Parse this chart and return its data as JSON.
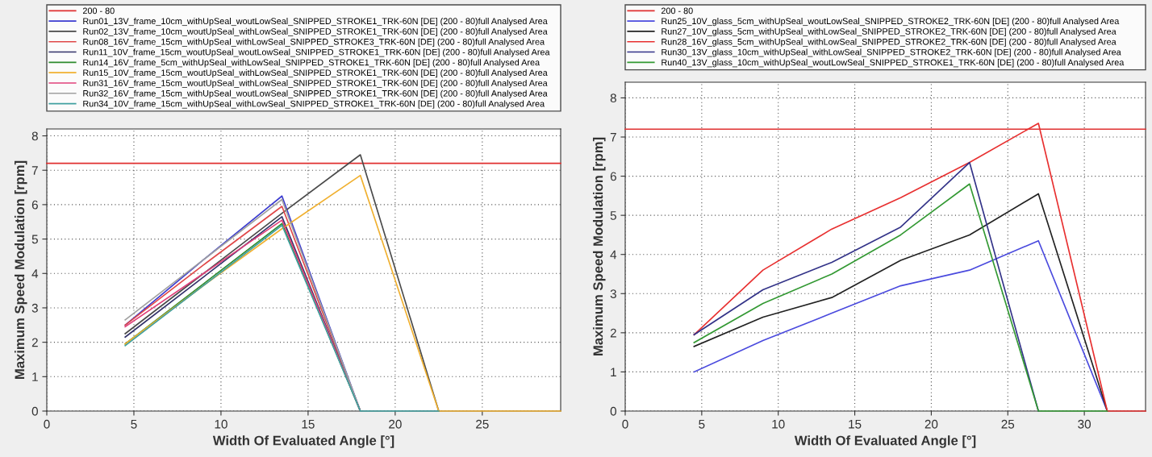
{
  "chart_data": [
    {
      "type": "line",
      "xlabel": "Width Of Evaluated Angle [°]",
      "ylabel": "Maximum Speed Modulation [rpm]",
      "xlim": [
        0,
        29.5
      ],
      "ylim": [
        0,
        8.2
      ],
      "xticks": [
        0,
        5,
        10,
        15,
        20,
        25
      ],
      "yticks": [
        0,
        1,
        2,
        3,
        4,
        5,
        6,
        7,
        8
      ],
      "grid": true,
      "legend": "top",
      "line_style": "solid",
      "marker": "none",
      "x": [
        4.5,
        9,
        13.5,
        18,
        22.5,
        27,
        29.5
      ],
      "series": [
        {
          "name": "200 - 80",
          "color": "#e03030",
          "x": [
            0,
            29.5
          ],
          "values": [
            7.2,
            7.2
          ]
        },
        {
          "name": "Run01_13V_frame_10cm_withUpSeal_woutLowSeal_SNIPPED_STROKE1_TRK-60N [DE] (200 - 80)full Analysed Area",
          "color": "#3a3ad0",
          "values": [
            2.5,
            4.4,
            6.25,
            0,
            null,
            null,
            null
          ]
        },
        {
          "name": "Run02_13V_frame_10cm_woutUpSeal_withLowSeal_SNIPPED_STROKE1_TRK-60N [DE] (200 - 80)full Analysed Area",
          "color": "#4a4a4a",
          "values": [
            2.25,
            4.0,
            5.75,
            7.45,
            0,
            null,
            null
          ]
        },
        {
          "name": "Run08_16V_frame_15cm_withUpSeal_withLowSeal_SNIPPED_STROKE3_TRK-60N [DE] (200 - 80)full Analysed Area",
          "color": "#e04848",
          "values": [
            2.5,
            4.25,
            5.95,
            0,
            null,
            null,
            null
          ]
        },
        {
          "name": "Run11_10V_frame_15cm_woutUpSeal_woutLowSeal_SNIPPED_STROKE1_TRK-60N [DE] (200 - 80)full Analysed Area",
          "color": "#33336a",
          "values": [
            2.15,
            3.9,
            5.65,
            0,
            null,
            null,
            null
          ]
        },
        {
          "name": "Run14_16V_frame_5cm_withUpSeal_withLowSeal_SNIPPED_STROKE1_TRK-60N [DE] (200 - 80)full Analysed Area",
          "color": "#2e8b2e",
          "values": [
            1.95,
            3.7,
            5.45,
            0,
            null,
            null,
            null
          ]
        },
        {
          "name": "Run15_10V_frame_15cm_woutUpSeal_withLowSeal_SNIPPED_STROKE1_TRK-60N [DE] (200 - 80)full Analysed Area",
          "color": "#f0b030",
          "values": [
            1.95,
            3.65,
            5.3,
            6.85,
            0,
            0,
            0
          ]
        },
        {
          "name": "Run31_16V_frame_15cm_woutUpSeal_withLowSeal_SNIPPED_STROKE1_TRK-60N [DE] (200 - 80)full Analysed Area",
          "color": "#e0407a",
          "values": [
            2.45,
            4.0,
            5.55,
            0,
            null,
            null,
            null
          ]
        },
        {
          "name": "Run32_16V_frame_15cm_withUpSeal_woutLowSeal_SNIPPED_STROKE1_TRK-60N [DE] (200 - 80)full Analysed Area",
          "color": "#a0a0a0",
          "values": [
            2.65,
            4.4,
            6.15,
            0,
            null,
            null,
            null
          ]
        },
        {
          "name": "Run34_10V_frame_15cm_withUpSeal_withLowSeal_SNIPPED_STROKE1_TRK-60N [DE] (200 - 80)full Analysed Area",
          "color": "#40a0a0",
          "values": [
            1.9,
            3.65,
            5.4,
            0,
            0,
            null,
            null
          ]
        }
      ]
    },
    {
      "type": "line",
      "xlabel": "Width Of Evaluated Angle [°]",
      "ylabel": "Maximum Speed Modulation [rpm]",
      "xlim": [
        0,
        34
      ],
      "ylim": [
        0,
        8.4
      ],
      "xticks": [
        0,
        5,
        10,
        15,
        20,
        25,
        30
      ],
      "yticks": [
        0,
        1,
        2,
        3,
        4,
        5,
        6,
        7,
        8
      ],
      "grid": true,
      "legend": "top",
      "line_style": "solid",
      "marker": "none",
      "x": [
        4.5,
        9,
        13.5,
        18,
        22.5,
        27,
        31.5,
        34
      ],
      "series": [
        {
          "name": "200 - 80",
          "color": "#e03030",
          "x": [
            0,
            34
          ],
          "values": [
            7.2,
            7.2
          ]
        },
        {
          "name": "Run25_10V_glass_5cm_withUpSeal_woutLowSeal_SNIPPED_STROKE2_TRK-60N [DE] (200 - 80)full Analysed Area",
          "color": "#4a4ade",
          "values": [
            1.0,
            1.8,
            2.5,
            3.2,
            3.6,
            4.35,
            0,
            null
          ]
        },
        {
          "name": "Run27_10V_glass_5cm_withUpSeal_withLowSeal_SNIPPED_STROKE2_TRK-60N [DE] (200 - 80)full Analysed Area",
          "color": "#222222",
          "values": [
            1.65,
            2.4,
            2.9,
            3.85,
            4.5,
            5.55,
            0,
            null
          ]
        },
        {
          "name": "Run28_16V_glass_5cm_withUpSeal_withLowSeal_SNIPPED_STROKE2_TRK-60N [DE] (200 - 80)full Analysed Area",
          "color": "#e83030",
          "values": [
            1.95,
            3.6,
            4.65,
            5.45,
            6.35,
            7.35,
            0,
            0
          ]
        },
        {
          "name": "Run30_13V_glass_10cm_withUpSeal_withLowSeal_SNIPPED_STROKE2_TRK-60N [DE] (200 - 80)full Analysed Area",
          "color": "#333388",
          "values": [
            1.95,
            3.1,
            3.8,
            4.7,
            6.35,
            0,
            null,
            null
          ]
        },
        {
          "name": "Run40_13V_glass_10cm_withUpSeal_woutLowSeal_SNIPPED_STROKE1_TRK-60N [DE] (200 - 80)full Analysed Area",
          "color": "#339933",
          "values": [
            1.75,
            2.75,
            3.5,
            4.5,
            5.8,
            0,
            0,
            null
          ]
        }
      ]
    }
  ]
}
